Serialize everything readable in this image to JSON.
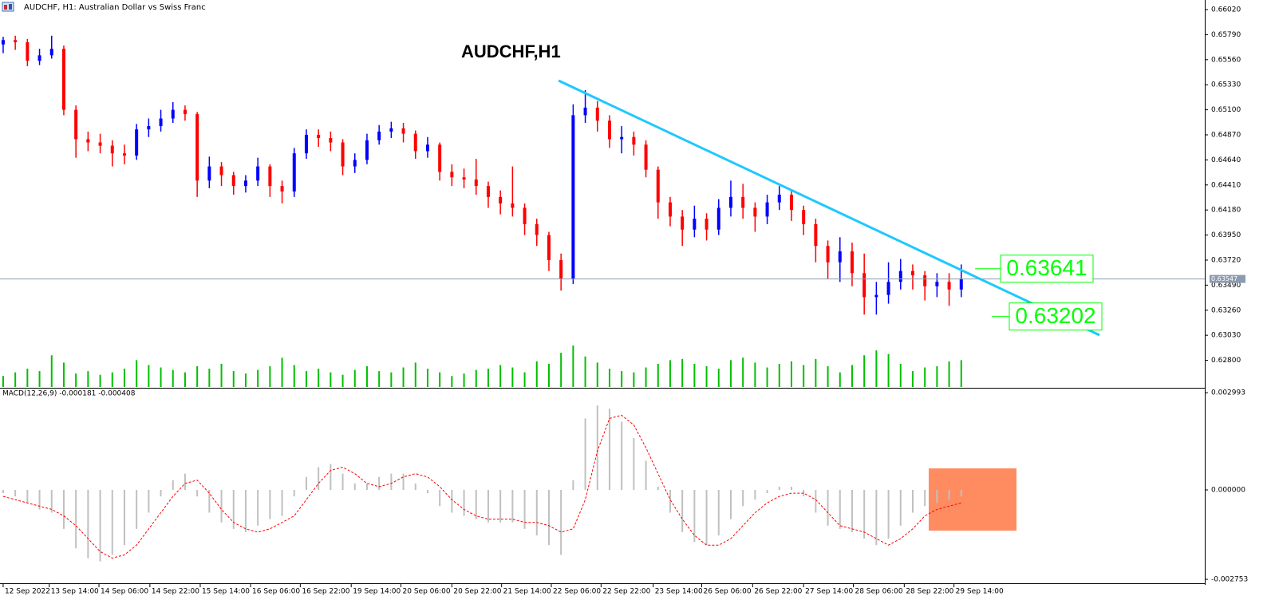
{
  "chart_data": {
    "type": "candlestick",
    "header": "AUDCHF, H1:  Australian Dollar vs Swiss Franc",
    "title": "AUDCHF,H1",
    "up_color": "#0000ff",
    "down_color": "#ff0000",
    "volume_color": "#00c000",
    "xlim": [
      -0.26,
      99.08
    ],
    "xticks": [
      {
        "value": 0,
        "label": "12 Sep 2022"
      },
      {
        "value": 3.8,
        "label": "13 Sep 14:00"
      },
      {
        "value": 7.9,
        "label": "14 Sep 06:00"
      },
      {
        "value": 12.1,
        "label": "14 Sep 22:00"
      },
      {
        "value": 16.25,
        "label": "15 Sep 14:00"
      },
      {
        "value": 20.4,
        "label": "16 Sep 06:00"
      },
      {
        "value": 24.5,
        "label": "16 Sep 22:00"
      },
      {
        "value": 28.7,
        "label": "19 Sep 14:00"
      },
      {
        "value": 32.8,
        "label": "20 Sep 06:00"
      },
      {
        "value": 37,
        "label": "20 Sep 22:00"
      },
      {
        "value": 41.1,
        "label": "21 Sep 14:00"
      },
      {
        "value": 45.2,
        "label": "22 Sep 06:00"
      },
      {
        "value": 49.3,
        "label": "22 Sep 22:00"
      },
      {
        "value": 53.6,
        "label": "23 Sep 14:00"
      },
      {
        "value": 57.6,
        "label": "26 Sep 06:00"
      },
      {
        "value": 61.8,
        "label": "26 Sep 22:00"
      },
      {
        "value": 66,
        "label": "27 Sep 14:00"
      },
      {
        "value": 70.1,
        "label": "28 Sep 06:00"
      },
      {
        "value": 74.3,
        "label": "28 Sep 22:00"
      },
      {
        "value": 78.4,
        "label": "29 Sep 14:00"
      }
    ],
    "ylim": [
      0.62555,
      0.66108
    ],
    "yticks": [
      {
        "value": 0.6602,
        "label": "0.66020"
      },
      {
        "value": 0.6579,
        "label": "0.65790"
      },
      {
        "value": 0.6556,
        "label": "0.65560"
      },
      {
        "value": 0.6533,
        "label": "0.65330"
      },
      {
        "value": 0.651,
        "label": "0.65100"
      },
      {
        "value": 0.6487,
        "label": "0.64870"
      },
      {
        "value": 0.6464,
        "label": "0.64640"
      },
      {
        "value": 0.6441,
        "label": "0.64410"
      },
      {
        "value": 0.6418,
        "label": "0.64180"
      },
      {
        "value": 0.6395,
        "label": "0.63950"
      },
      {
        "value": 0.6372,
        "label": "0.63720"
      },
      {
        "value": 0.6349,
        "label": "0.63490"
      },
      {
        "value": 0.6326,
        "label": "0.63260"
      },
      {
        "value": 0.6303,
        "label": "0.63030"
      },
      {
        "value": 0.628,
        "label": "0.62800"
      }
    ],
    "current_price": {
      "value": 0.63547,
      "label": "0.63547"
    },
    "open": [
      0.657,
      0.6574,
      0.6572,
      0.6555,
      0.656,
      0.6566,
      0.651,
      0.6483,
      0.648,
      0.6477,
      0.647,
      0.6468,
      0.6492,
      0.6495,
      0.6502,
      0.651,
      0.6506,
      0.6445,
      0.6458,
      0.645,
      0.644,
      0.6445,
      0.6458,
      0.644,
      0.6435,
      0.647,
      0.6487,
      0.6484,
      0.648,
      0.6458,
      0.6464,
      0.6482,
      0.649,
      0.6493,
      0.6488,
      0.6472,
      0.6478,
      0.6453,
      0.6448,
      0.6446,
      0.644,
      0.643,
      0.6424,
      0.642,
      0.6405,
      0.6395,
      0.6372,
      0.6355,
      0.6505,
      0.6512,
      0.65,
      0.6483,
      0.6485,
      0.6478,
      0.6455,
      0.6425,
      0.6412,
      0.64,
      0.641,
      0.64,
      0.642,
      0.643,
      0.642,
      0.6412,
      0.6425,
      0.6432,
      0.6418,
      0.6405,
      0.6385,
      0.637,
      0.638,
      0.636,
      0.6338,
      0.634,
      0.6352,
      0.6362,
      0.6358,
      0.6348,
      0.6352,
      0.6345
    ],
    "high": [
      0.6577,
      0.6578,
      0.6575,
      0.6566,
      0.6578,
      0.6569,
      0.6514,
      0.649,
      0.6488,
      0.6482,
      0.6478,
      0.6497,
      0.6502,
      0.651,
      0.6517,
      0.6514,
      0.6508,
      0.6467,
      0.6462,
      0.6453,
      0.645,
      0.6466,
      0.646,
      0.6445,
      0.6475,
      0.6492,
      0.6492,
      0.649,
      0.6483,
      0.647,
      0.6488,
      0.6496,
      0.6499,
      0.6498,
      0.6491,
      0.6485,
      0.648,
      0.646,
      0.6456,
      0.6465,
      0.6444,
      0.6436,
      0.6458,
      0.6424,
      0.641,
      0.6398,
      0.6378,
      0.6515,
      0.6528,
      0.6518,
      0.6505,
      0.6495,
      0.649,
      0.6482,
      0.6458,
      0.643,
      0.6418,
      0.6422,
      0.6415,
      0.6428,
      0.6445,
      0.6442,
      0.6425,
      0.6432,
      0.644,
      0.6436,
      0.6422,
      0.641,
      0.639,
      0.6393,
      0.6388,
      0.6378,
      0.6352,
      0.637,
      0.6373,
      0.6368,
      0.6362,
      0.636,
      0.636,
      0.6368
    ],
    "low": [
      0.6562,
      0.6565,
      0.655,
      0.6551,
      0.6557,
      0.6505,
      0.6466,
      0.6472,
      0.647,
      0.6458,
      0.646,
      0.6464,
      0.6485,
      0.649,
      0.6498,
      0.65,
      0.643,
      0.6438,
      0.644,
      0.6432,
      0.6434,
      0.644,
      0.643,
      0.6424,
      0.643,
      0.6465,
      0.6476,
      0.6472,
      0.645,
      0.6452,
      0.646,
      0.6478,
      0.6484,
      0.648,
      0.6465,
      0.6466,
      0.6445,
      0.644,
      0.6438,
      0.6432,
      0.642,
      0.6414,
      0.6412,
      0.6395,
      0.6385,
      0.6362,
      0.6344,
      0.635,
      0.6498,
      0.649,
      0.6475,
      0.647,
      0.6468,
      0.6448,
      0.641,
      0.6403,
      0.6385,
      0.6393,
      0.639,
      0.6395,
      0.6412,
      0.641,
      0.6398,
      0.6405,
      0.6418,
      0.6408,
      0.6395,
      0.637,
      0.6355,
      0.6352,
      0.6348,
      0.6322,
      0.6322,
      0.6332,
      0.6345,
      0.6345,
      0.6335,
      0.6338,
      0.633,
      0.6338
    ],
    "close": [
      0.6574,
      0.6572,
      0.6555,
      0.656,
      0.6566,
      0.651,
      0.6483,
      0.648,
      0.6477,
      0.647,
      0.6468,
      0.6492,
      0.6495,
      0.6502,
      0.651,
      0.6506,
      0.6445,
      0.6458,
      0.645,
      0.644,
      0.6445,
      0.6458,
      0.644,
      0.6435,
      0.647,
      0.6487,
      0.6484,
      0.648,
      0.6458,
      0.6464,
      0.6482,
      0.649,
      0.6493,
      0.6488,
      0.6472,
      0.6478,
      0.6453,
      0.6448,
      0.6446,
      0.644,
      0.643,
      0.6424,
      0.642,
      0.6405,
      0.6395,
      0.6372,
      0.6355,
      0.6505,
      0.6512,
      0.65,
      0.6483,
      0.6485,
      0.6478,
      0.6455,
      0.6425,
      0.6412,
      0.64,
      0.641,
      0.64,
      0.642,
      0.643,
      0.642,
      0.6412,
      0.6425,
      0.6432,
      0.6418,
      0.6405,
      0.6385,
      0.637,
      0.638,
      0.636,
      0.6338,
      0.634,
      0.6352,
      0.6362,
      0.6358,
      0.6348,
      0.6352,
      0.6345,
      0.6355
    ],
    "volume": [
      900,
      1200,
      1500,
      1300,
      2600,
      2000,
      1100,
      1300,
      1000,
      1200,
      1500,
      2200,
      1800,
      1600,
      1400,
      1200,
      1700,
      1500,
      1900,
      1300,
      1100,
      1400,
      1700,
      2400,
      1800,
      1300,
      1500,
      1200,
      1000,
      1400,
      1700,
      1300,
      1200,
      1600,
      2000,
      1500,
      1200,
      900,
      1100,
      1400,
      1500,
      1800,
      1600,
      1200,
      2100,
      1900,
      2800,
      3400,
      2500,
      2000,
      1500,
      1300,
      1200,
      1600,
      1900,
      2200,
      2300,
      1900,
      1700,
      1500,
      2200,
      2400,
      2000,
      1600,
      1900,
      2100,
      1800,
      2300,
      1700,
      1200,
      1800,
      2600,
      3000,
      2700,
      1900,
      1300,
      1600,
      1700,
      2100,
      2200
    ],
    "levels": [
      {
        "value": 0.63641,
        "label": "0.63641",
        "color": "#00ff00"
      },
      {
        "value": 0.63202,
        "label": "0.63202",
        "color": "#00ff00"
      }
    ],
    "trendline": {
      "x": [
        45.8,
        90.4
      ],
      "y": [
        0.65368,
        0.63031
      ],
      "color": "#1ec8ff"
    },
    "macd": {
      "label": "MACD(12,26,9) -0.000181 -0.000408",
      "histogram_color": "#c0c0c0",
      "signal_color": "#ff0000",
      "ylim": [
        -0.00285,
        0.00312
      ],
      "yticks": [
        {
          "value": 0.002993,
          "label": "0.002993"
        },
        {
          "value": 0,
          "label": "0.000000"
        },
        {
          "value": -0.002753,
          "label": "-0.002753"
        }
      ],
      "histogram": [
        -0.0001,
        -0.0002,
        -0.0004,
        -0.0006,
        -0.0007,
        -0.0012,
        -0.0018,
        -0.0021,
        -0.0022,
        -0.002,
        -0.0017,
        -0.0012,
        -0.0007,
        -0.0002,
        0.0003,
        0.0005,
        -0.0002,
        -0.0007,
        -0.001,
        -0.0012,
        -0.0013,
        -0.0011,
        -0.0009,
        -0.0008,
        -0.0002,
        0.0004,
        0.0007,
        0.0008,
        0.0005,
        0.0002,
        0.0002,
        0.0004,
        0.0005,
        0.0005,
        0.0002,
        -0.0001,
        -0.0005,
        -0.0007,
        -0.0008,
        -0.0009,
        -0.001,
        -0.001,
        -0.001,
        -0.0012,
        -0.0014,
        -0.0017,
        -0.002,
        0.0003,
        0.0022,
        0.0026,
        0.0025,
        0.0021,
        0.0016,
        0.0009,
        0.0001,
        -0.0007,
        -0.0013,
        -0.0016,
        -0.0017,
        -0.0014,
        -0.0009,
        -0.0005,
        -0.0003,
        -0.0001,
        0.0001,
        0.0001,
        -0.0002,
        -0.0007,
        -0.0011,
        -0.0012,
        -0.0013,
        -0.0015,
        -0.0017,
        -0.0015,
        -0.0011,
        -0.0007,
        -0.0005,
        -0.0004,
        -0.0003,
        -0.0002
      ],
      "signal": [
        -0.0002,
        -0.0003,
        -0.0004,
        -0.0005,
        -0.0006,
        -0.0008,
        -0.0011,
        -0.0015,
        -0.0019,
        -0.0021,
        -0.002,
        -0.0017,
        -0.0012,
        -0.0007,
        -0.0002,
        0.0002,
        0.0003,
        -0.0001,
        -0.0006,
        -0.001,
        -0.0012,
        -0.0013,
        -0.0012,
        -0.001,
        -0.0008,
        -0.0003,
        0.0002,
        0.0006,
        0.0007,
        0.0005,
        0.0002,
        0.0001,
        0.0002,
        0.0004,
        0.0005,
        0.0004,
        0.0001,
        -0.0003,
        -0.0006,
        -0.0008,
        -0.0009,
        -0.0009,
        -0.0009,
        -0.001,
        -0.001,
        -0.0011,
        -0.0013,
        -0.0012,
        -0.0003,
        0.0012,
        0.0022,
        0.0023,
        0.002,
        0.0013,
        0.0005,
        -0.0003,
        -0.0009,
        -0.0014,
        -0.0017,
        -0.0017,
        -0.0015,
        -0.0011,
        -0.0007,
        -0.0004,
        -0.0002,
        -0.0001,
        -0.0001,
        -0.0003,
        -0.0007,
        -0.0011,
        -0.0012,
        -0.0013,
        -0.0015,
        -0.0017,
        -0.0015,
        -0.0012,
        -0.0008,
        -0.0006,
        -0.0005,
        -0.0004
      ]
    }
  }
}
